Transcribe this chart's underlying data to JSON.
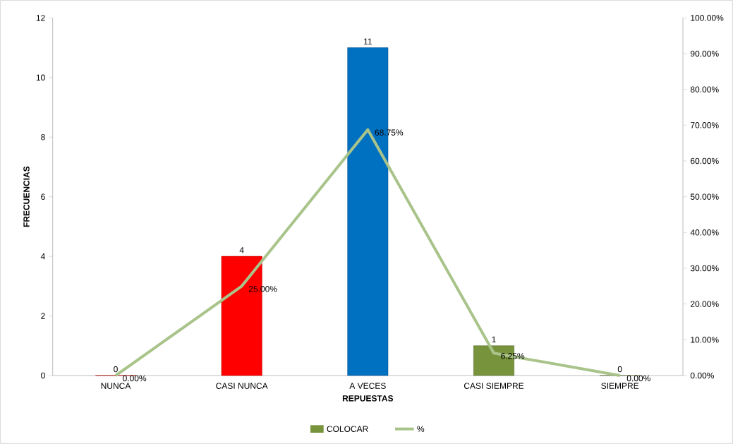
{
  "chart_data": {
    "type": "bar",
    "xlabel": "REPUESTAS",
    "ylabel": "FRECUENCIAS",
    "categories": [
      "NUNCA",
      "CASI NUNCA",
      "A VECES",
      "CASI SIEMPRE",
      "SIEMPRE"
    ],
    "series": [
      {
        "name": "COLOCAR",
        "color": "#77933c",
        "colors": [
          "#ff0000",
          "#ff0000",
          "#0070c0",
          "#77933c",
          "#77933c"
        ],
        "values": [
          0,
          4,
          11,
          1,
          0
        ],
        "value_labels": [
          "0",
          "4",
          "11",
          "1",
          "0"
        ]
      },
      {
        "name": "%",
        "type": "line",
        "axis": "y2",
        "color": "#a9c48a",
        "values": [
          0,
          25,
          68.75,
          6.25,
          0
        ],
        "value_labels": [
          "0.00%",
          "25.00%",
          "68.75%",
          "6.25%",
          "0.00%"
        ]
      }
    ],
    "ylim": [
      0,
      12
    ],
    "yticks": [
      0,
      2,
      4,
      6,
      8,
      10,
      12
    ],
    "y2lim": [
      0,
      100
    ],
    "y2ticks": [
      {
        "value": 0,
        "label": "0.00%"
      },
      {
        "value": 10,
        "label": "10.00%"
      },
      {
        "value": 20,
        "label": "20.00%"
      },
      {
        "value": 30,
        "label": "30.00%"
      },
      {
        "value": 40,
        "label": "40.00%"
      },
      {
        "value": 50,
        "label": "50.00%"
      },
      {
        "value": 60,
        "label": "60.00%"
      },
      {
        "value": 70,
        "label": "70.00%"
      },
      {
        "value": 80,
        "label": "80.00%"
      },
      {
        "value": 90,
        "label": "90.00%"
      },
      {
        "value": 100,
        "label": "100.00%"
      }
    ],
    "legend": "bottom"
  }
}
